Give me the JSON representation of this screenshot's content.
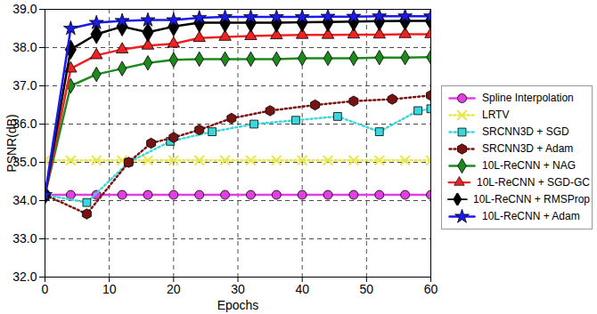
{
  "chart_data": {
    "type": "line",
    "xlabel": "Epochs",
    "ylabel": "PSNR(dB)",
    "xlim": [
      0,
      60
    ],
    "ylim": [
      32,
      39
    ],
    "xticks": [
      0,
      10,
      20,
      30,
      40,
      50,
      60
    ],
    "yticks": [
      32,
      33,
      34,
      35,
      36,
      37,
      38,
      39
    ],
    "grid": true,
    "legend": "right",
    "series": [
      {
        "name": "Spline Interpolation",
        "color": "#e23fe2",
        "marker": "circle",
        "line_style": "solid",
        "x": [
          0,
          4,
          8,
          12,
          16,
          20,
          24,
          28,
          32,
          36,
          40,
          44,
          48,
          52,
          56,
          60
        ],
        "values": [
          34.15,
          34.15,
          34.15,
          34.15,
          34.15,
          34.15,
          34.15,
          34.15,
          34.15,
          34.15,
          34.15,
          34.15,
          34.15,
          34.15,
          34.15,
          34.15
        ]
      },
      {
        "name": "LRTV",
        "color": "#e8e84a",
        "marker": "times",
        "line_style": "dotted",
        "x": [
          0,
          4,
          8,
          12,
          16,
          20,
          24,
          28,
          32,
          36,
          40,
          44,
          48,
          52,
          56,
          60
        ],
        "values": [
          35.05,
          35.05,
          35.05,
          35.05,
          35.05,
          35.05,
          35.05,
          35.05,
          35.05,
          35.05,
          35.05,
          35.05,
          35.05,
          35.05,
          35.05,
          35.05
        ]
      },
      {
        "name": "SRCNN3D + SGD",
        "color": "#3ad8dc",
        "marker": "square",
        "line_style": "dotted",
        "x": [
          0,
          6.5,
          13,
          19.5,
          26,
          32.5,
          39,
          45.5,
          52,
          58,
          60
        ],
        "values": [
          34.15,
          33.95,
          35.0,
          35.55,
          35.8,
          36.0,
          36.1,
          36.2,
          35.8,
          36.35,
          36.4
        ]
      },
      {
        "name": "SRCNN3D + Adam",
        "color": "#7a1212",
        "marker": "hexagon",
        "line_style": "dotted",
        "x": [
          0,
          6.5,
          13,
          16.5,
          20,
          24,
          29,
          35,
          42,
          48,
          54,
          60
        ],
        "values": [
          34.15,
          33.65,
          35.0,
          35.5,
          35.65,
          35.85,
          36.15,
          36.35,
          36.5,
          36.6,
          36.65,
          36.75
        ]
      },
      {
        "name": "10L-ReCNN + NAG",
        "color": "#1e8a1e",
        "marker": "diamond",
        "line_style": "solid",
        "x": [
          0,
          4,
          8,
          12,
          16,
          20,
          24,
          28,
          32,
          36,
          40,
          44,
          48,
          52,
          56,
          60
        ],
        "values": [
          34.15,
          37.0,
          37.3,
          37.45,
          37.6,
          37.68,
          37.7,
          37.7,
          37.7,
          37.7,
          37.72,
          37.72,
          37.72,
          37.74,
          37.74,
          37.75
        ]
      },
      {
        "name": "10L-ReCNN + SGD-GC",
        "color": "#ee2222",
        "marker": "triangle",
        "line_style": "solid",
        "x": [
          0,
          4,
          8,
          12,
          16,
          20,
          24,
          28,
          32,
          36,
          40,
          44,
          48,
          52,
          56,
          60
        ],
        "values": [
          34.15,
          37.45,
          37.8,
          37.95,
          38.05,
          38.1,
          38.25,
          38.28,
          38.3,
          38.32,
          38.33,
          38.33,
          38.34,
          38.34,
          38.35,
          38.35
        ]
      },
      {
        "name": "10L-ReCNN + RMSProp",
        "color": "#000000",
        "marker": "diamond",
        "line_style": "solid",
        "x": [
          0,
          4,
          8,
          12,
          16,
          20,
          24,
          28,
          32,
          36,
          40,
          44,
          48,
          52,
          56,
          60
        ],
        "values": [
          34.15,
          37.95,
          38.35,
          38.55,
          38.4,
          38.55,
          38.65,
          38.65,
          38.65,
          38.65,
          38.66,
          38.67,
          38.68,
          38.69,
          38.7,
          38.7
        ]
      },
      {
        "name": "10L-ReCNN + Adam",
        "color": "#1a1aee",
        "marker": "star",
        "line_style": "solid",
        "x": [
          0,
          4,
          8,
          12,
          16,
          20,
          24,
          28,
          32,
          36,
          40,
          44,
          48,
          52,
          56,
          60
        ],
        "values": [
          34.15,
          38.5,
          38.65,
          38.7,
          38.72,
          38.72,
          38.78,
          38.8,
          38.8,
          38.8,
          38.8,
          38.81,
          38.81,
          38.82,
          38.82,
          38.82
        ]
      }
    ]
  }
}
